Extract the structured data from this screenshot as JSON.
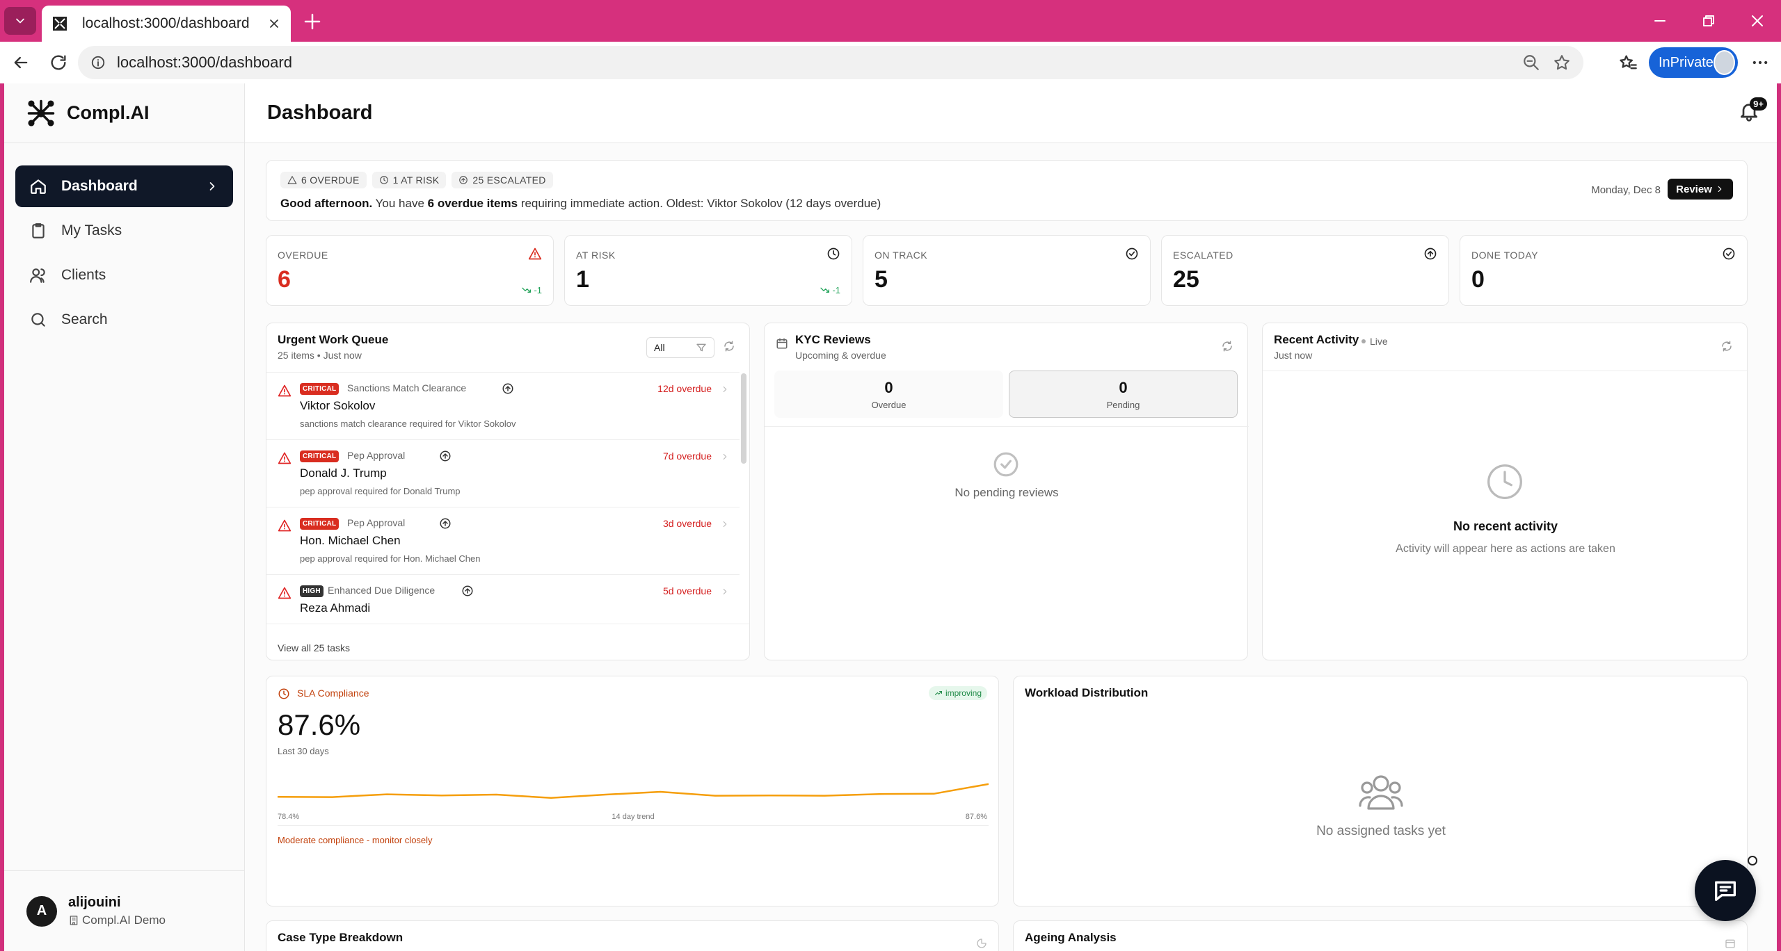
{
  "browser": {
    "tab_title": "localhost:3000/dashboard",
    "url": "localhost:3000/dashboard",
    "inprivate_label": "InPrivate"
  },
  "brand": {
    "name": "Compl.AI"
  },
  "sidebar": {
    "items": [
      {
        "label": "Dashboard",
        "icon": "home-icon",
        "active": true
      },
      {
        "label": "My Tasks",
        "icon": "clipboard-icon"
      },
      {
        "label": "Clients",
        "icon": "users-icon"
      },
      {
        "label": "Search",
        "icon": "search-icon"
      }
    ]
  },
  "user": {
    "initial": "A",
    "name": "alijouini",
    "org": "Compl.AI Demo"
  },
  "header": {
    "title": "Dashboard",
    "notification_badge": "9+"
  },
  "alert": {
    "pills": [
      "6 OVERDUE",
      "1 AT RISK",
      "25 ESCALATED"
    ],
    "greeting": "Good afternoon.",
    "msg_a": " You have ",
    "msg_bold": "6 overdue items",
    "msg_b": " requiring immediate action. Oldest: Viktor Sokolov (12 days overdue)",
    "date": "Monday, Dec 8",
    "button": "Review"
  },
  "stats": [
    {
      "label": "OVERDUE",
      "value": "6",
      "trend": "-1",
      "color": "#d92d20"
    },
    {
      "label": "AT RISK",
      "value": "1",
      "trend": "-1",
      "color": "#111111"
    },
    {
      "label": "ON TRACK",
      "value": "5",
      "trend": "",
      "color": "#111111"
    },
    {
      "label": "ESCALATED",
      "value": "25",
      "trend": "",
      "color": "#111111"
    },
    {
      "label": "DONE TODAY",
      "value": "0",
      "trend": "",
      "color": "#111111"
    }
  ],
  "queue": {
    "title": "Urgent Work Queue",
    "subtitle": "25 items • Just now",
    "filter": "All",
    "items": [
      {
        "priority": "CRITICAL",
        "type": "Sanctions Match Clearance",
        "name": "Viktor Sokolov",
        "desc": "sanctions match clearance required for Viktor Sokolov",
        "due": "12d overdue"
      },
      {
        "priority": "CRITICAL",
        "type": "Pep Approval",
        "name": "Donald J. Trump",
        "desc": "pep approval required for Donald Trump",
        "due": "7d overdue"
      },
      {
        "priority": "CRITICAL",
        "type": "Pep Approval",
        "name": "Hon. Michael Chen",
        "desc": "pep approval required for Hon. Michael Chen",
        "due": "3d overdue"
      },
      {
        "priority": "HIGH",
        "type": "Enhanced Due Diligence",
        "name": "Reza Ahmadi",
        "desc": "",
        "due": "5d overdue"
      }
    ],
    "footer": "View all 25 tasks"
  },
  "kyc": {
    "title": "KYC Reviews",
    "subtitle": "Upcoming & overdue",
    "tabs": [
      {
        "value": "0",
        "label": "Overdue"
      },
      {
        "value": "0",
        "label": "Pending"
      }
    ],
    "empty": "No pending reviews"
  },
  "recent": {
    "title": "Recent Activity",
    "live": "Live",
    "subtitle": "Just now",
    "empty_title": "No recent activity",
    "empty_sub": "Activity will appear here as actions are taken"
  },
  "sla": {
    "label": "SLA Compliance",
    "badge": "improving",
    "value": "87.6%",
    "sub": "Last 30 days",
    "trend_low": "78.4%",
    "trend_mid": "14 day trend",
    "trend_high": "87.6%",
    "note": "Moderate compliance - monitor closely",
    "trend_points": [
      78.4,
      78.2,
      80.2,
      79.4,
      80.0,
      77.6,
      80.0,
      82.0,
      79.2,
      79.4,
      79.2,
      80.4,
      80.6,
      87.6
    ]
  },
  "workload": {
    "title": "Workload Distribution",
    "empty": "No assigned tasks yet"
  },
  "case_breakdown": {
    "title": "Case Type Breakdown"
  },
  "ageing": {
    "title": "Ageing Analysis"
  },
  "colors": {
    "critical": "#d92d20",
    "high": "#333333",
    "accent_orange": "#f59e0b",
    "brand_tabbar": "#d6307d"
  }
}
